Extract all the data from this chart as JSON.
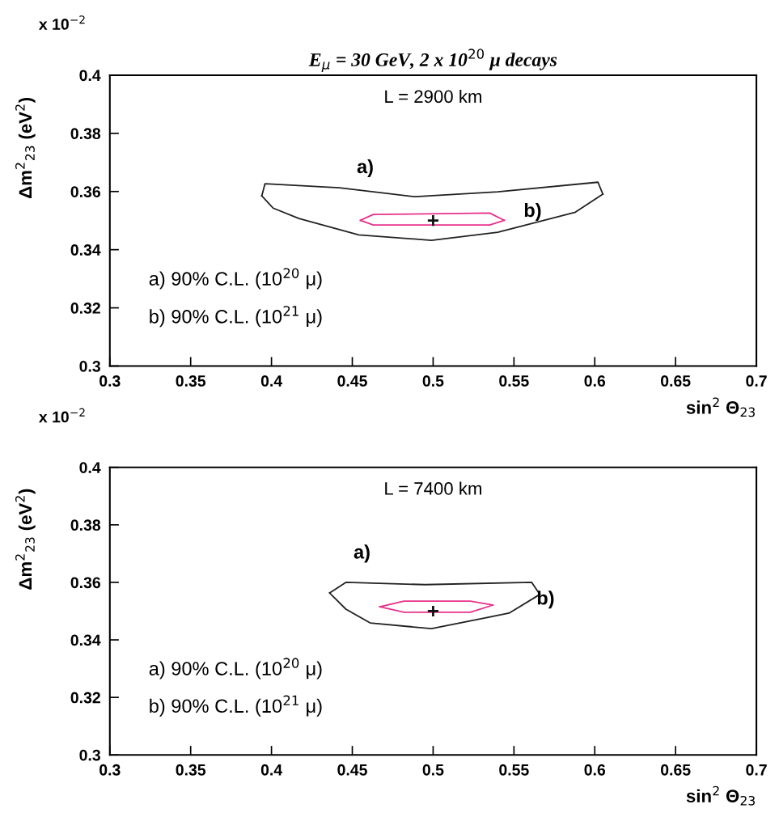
{
  "chart_data": [
    {
      "type": "line",
      "title": "E$_{μ}$ = 30 GeV, 2 x 10$^{20}$ μ decays",
      "xlabel": "sin$^{2}$ Θ$_{23}$",
      "ylabel": "Δm$^{2}$$_{23}$ (eV$^{2}$)",
      "xlim": [
        0.3,
        0.7
      ],
      "xticks": [
        0.3,
        0.35,
        0.4,
        0.45,
        0.5,
        0.55,
        0.6,
        0.65,
        0.7
      ],
      "ylim": [
        0.3,
        0.4
      ],
      "yticks": [
        0.3,
        0.32,
        0.34,
        0.36,
        0.38,
        0.4
      ],
      "grid": false,
      "legend": false,
      "series": [
        {
          "color": "#222222",
          "x": [
            0.394,
            0.396,
            0.442,
            0.489,
            0.54,
            0.602,
            0.605
          ],
          "values": [
            0.3585,
            0.3627,
            0.3613,
            0.3582,
            0.3599,
            0.3632,
            0.3591
          ]
        },
        {
          "color": "#222222",
          "x": [
            0.394,
            0.401,
            0.417,
            0.454,
            0.499,
            0.54,
            0.588,
            0.605
          ],
          "values": [
            0.3585,
            0.3543,
            0.3507,
            0.3451,
            0.3432,
            0.346,
            0.3529,
            0.3591
          ]
        },
        {
          "color": "#e8308a",
          "x": [
            0.455,
            0.463,
            0.535,
            0.544
          ],
          "values": [
            0.3501,
            0.3521,
            0.3526,
            0.3501
          ]
        },
        {
          "color": "#e8308a",
          "x": [
            0.455,
            0.463,
            0.535,
            0.544
          ],
          "values": [
            0.3501,
            0.3485,
            0.3485,
            0.3501
          ]
        },
        {
          "type": "scatter",
          "marker": "cross",
          "color": "#111111",
          "x": [
            0.5
          ],
          "values": [
            0.35
          ]
        }
      ],
      "annotations": [
        "L = 2900 km",
        "a) 90% C.L. (10$^{20}$ μ)",
        "b) 90% C.L. (10$^{21}$ μ)",
        "x 10$^{−2}$",
        "a)",
        "b)"
      ]
    },
    {
      "type": "line",
      "xlabel": "sin$^{2}$ Θ$_{23}$",
      "ylabel": "Δm$^{2}$$_{23}$ (eV$^{2}$)",
      "xlim": [
        0.3,
        0.7
      ],
      "xticks": [
        0.3,
        0.35,
        0.4,
        0.45,
        0.5,
        0.55,
        0.6,
        0.65,
        0.7
      ],
      "ylim": [
        0.3,
        0.4
      ],
      "yticks": [
        0.3,
        0.32,
        0.34,
        0.36,
        0.38,
        0.4
      ],
      "grid": false,
      "legend": false,
      "series": [
        {
          "color": "#222222",
          "x": [
            0.436,
            0.446,
            0.495,
            0.561,
            0.566
          ],
          "values": [
            0.3563,
            0.36,
            0.3592,
            0.36,
            0.3558
          ]
        },
        {
          "color": "#222222",
          "x": [
            0.436,
            0.446,
            0.461,
            0.499,
            0.547,
            0.566
          ],
          "values": [
            0.3563,
            0.3507,
            0.3459,
            0.3439,
            0.3493,
            0.3558
          ]
        },
        {
          "color": "#e8308a",
          "x": [
            0.467,
            0.482,
            0.523,
            0.537
          ],
          "values": [
            0.3515,
            0.3535,
            0.3535,
            0.3521
          ]
        },
        {
          "color": "#e8308a",
          "x": [
            0.467,
            0.482,
            0.523,
            0.537
          ],
          "values": [
            0.3515,
            0.3496,
            0.3496,
            0.3521
          ]
        },
        {
          "type": "scatter",
          "marker": "cross",
          "color": "#111111",
          "x": [
            0.5
          ],
          "values": [
            0.35
          ]
        }
      ],
      "annotations": [
        "L = 7400 km",
        "a) 90% C.L. (10$^{20}$ μ)",
        "b) 90% C.L. (10$^{21}$ μ)",
        "x 10$^{−2}$",
        "a)",
        "b)"
      ]
    }
  ]
}
